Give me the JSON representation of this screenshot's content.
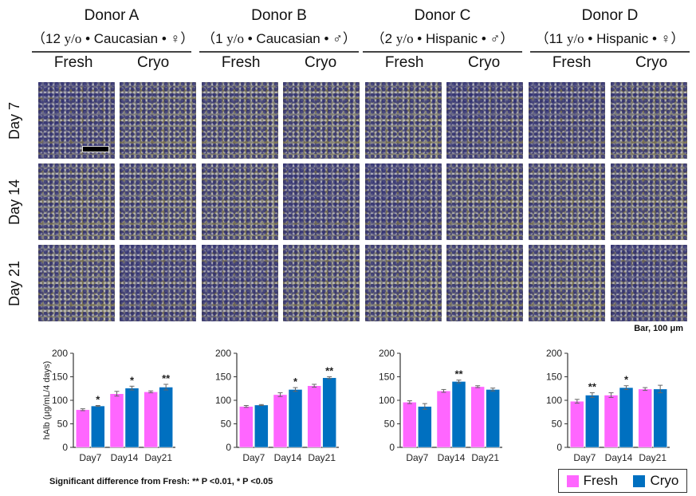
{
  "donors": [
    {
      "name": "Donor A",
      "info_prefix": "（12 ",
      "yo": "y/o",
      "info_suffix": " • Caucasian • ♀）",
      "conditions": [
        "Fresh",
        "Cryo"
      ]
    },
    {
      "name": "Donor B",
      "info_prefix": "（1 ",
      "yo": "y/o",
      "info_suffix": " • Caucasian • ♂）",
      "conditions": [
        "Fresh",
        "Cryo"
      ]
    },
    {
      "name": "Donor C",
      "info_prefix": "（2 ",
      "yo": "y/o",
      "info_suffix": " • Hispanic • ♂）",
      "conditions": [
        "Fresh",
        "Cryo"
      ]
    },
    {
      "name": "Donor D",
      "info_prefix": "（11 ",
      "yo": "y/o",
      "info_suffix": " • Hispanic • ♀）",
      "conditions": [
        "Fresh",
        "Cryo"
      ]
    }
  ],
  "rows": [
    "Day 7",
    "Day 14",
    "Day 21"
  ],
  "scale_note": "Bar, 100 μm",
  "significance_note": "Significant difference from Fresh: ** P <0.01, * P <0.05",
  "legend": {
    "fresh": "Fresh",
    "cryo": "Cryo"
  },
  "colors": {
    "fresh": "#ff66ff",
    "cryo": "#0070c0"
  },
  "chart_data": [
    {
      "type": "bar",
      "title": "Donor A",
      "ylabel": "hAlb (μg/mL/4 days)",
      "ylim": [
        0,
        200
      ],
      "yticks": [
        0,
        50,
        100,
        150,
        200
      ],
      "categories": [
        "Day7",
        "Day14",
        "Day21"
      ],
      "series": [
        {
          "name": "Fresh",
          "values": [
            80,
            114,
            118
          ],
          "errors": [
            2,
            5,
            2
          ]
        },
        {
          "name": "Cryo",
          "values": [
            88,
            126,
            128
          ],
          "errors": [
            1,
            4,
            6
          ]
        }
      ],
      "significance": [
        "*",
        "*",
        "**"
      ]
    },
    {
      "type": "bar",
      "title": "Donor B",
      "ylabel": "",
      "ylim": [
        0,
        200
      ],
      "yticks": [
        0,
        50,
        100,
        150,
        200
      ],
      "categories": [
        "Day7",
        "Day14",
        "Day21"
      ],
      "series": [
        {
          "name": "Fresh",
          "values": [
            87,
            112,
            131
          ],
          "errors": [
            2,
            4,
            3
          ]
        },
        {
          "name": "Cryo",
          "values": [
            90,
            123,
            148
          ],
          "errors": [
            1,
            4,
            2
          ]
        }
      ],
      "significance": [
        "",
        "*",
        "**"
      ]
    },
    {
      "type": "bar",
      "title": "Donor C",
      "ylabel": "",
      "ylim": [
        0,
        200
      ],
      "yticks": [
        0,
        50,
        100,
        150,
        200
      ],
      "categories": [
        "Day7",
        "Day14",
        "Day21"
      ],
      "series": [
        {
          "name": "Fresh",
          "values": [
            96,
            120,
            129
          ],
          "errors": [
            3,
            3,
            2
          ]
        },
        {
          "name": "Cryo",
          "values": [
            87,
            140,
            123
          ],
          "errors": [
            6,
            3,
            3
          ]
        }
      ],
      "significance": [
        "",
        "**",
        ""
      ]
    },
    {
      "type": "bar",
      "title": "Donor D",
      "ylabel": "",
      "ylim": [
        0,
        200
      ],
      "yticks": [
        0,
        50,
        100,
        150,
        200
      ],
      "categories": [
        "Day7",
        "Day14",
        "Day21"
      ],
      "series": [
        {
          "name": "Fresh",
          "values": [
            98,
            111,
            124
          ],
          "errors": [
            4,
            5,
            3
          ]
        },
        {
          "name": "Cryo",
          "values": [
            111,
            127,
            124
          ],
          "errors": [
            5,
            4,
            8
          ]
        }
      ],
      "significance": [
        "**",
        "*",
        ""
      ]
    }
  ]
}
